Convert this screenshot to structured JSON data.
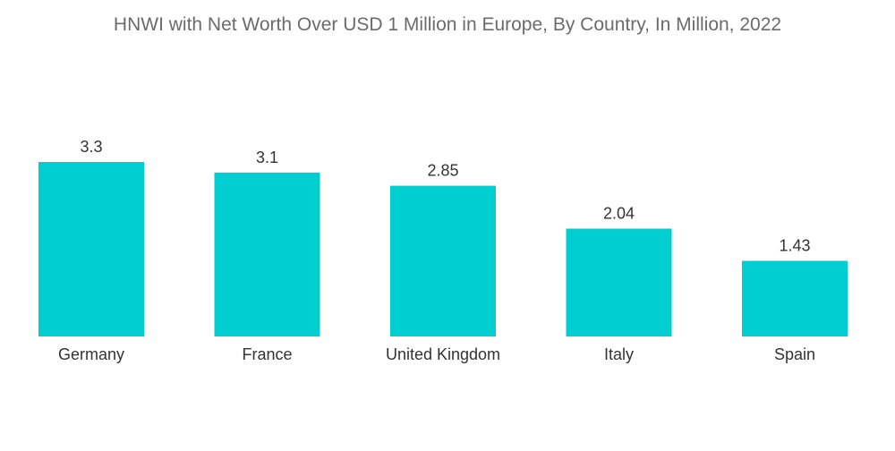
{
  "chart_data": {
    "type": "bar",
    "title": "HNWI with Net Worth Over USD 1 Million in Europe, By Country, In Million, 2022",
    "categories": [
      "Germany",
      "France",
      "United Kingdom",
      "Italy",
      "Spain"
    ],
    "values": [
      3.3,
      3.1,
      2.85,
      2.04,
      1.43
    ],
    "value_labels": [
      "3.3",
      "3.1",
      "2.85",
      "2.04",
      "1.43"
    ],
    "xlabel": "",
    "ylabel": "",
    "ylim": [
      0,
      3.3
    ],
    "grid": false,
    "legend": "none",
    "bar_color": "#00ced1"
  }
}
